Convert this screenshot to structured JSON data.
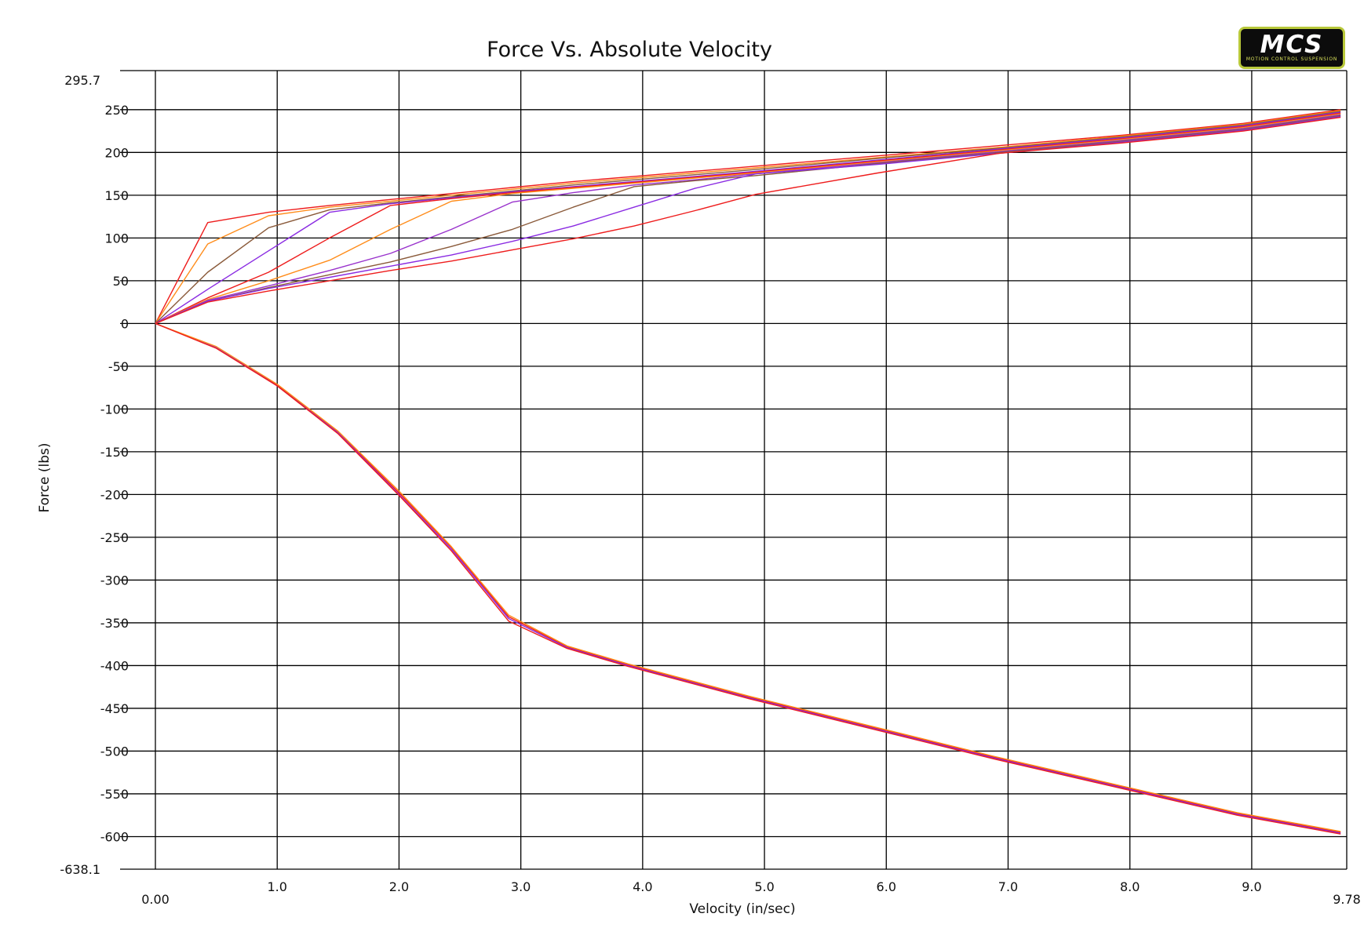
{
  "logo": {
    "main": "MCS",
    "sub": "MOTION CONTROL SUSPENSION"
  },
  "chart_data": {
    "type": "line",
    "title": "Force Vs. Absolute Velocity",
    "xlabel": "Velocity (in/sec)",
    "ylabel": "Force (lbs)",
    "xlim": [
      0,
      9.78
    ],
    "ylim": [
      -638.1,
      295.7
    ],
    "xticks": [
      0,
      1,
      2,
      3,
      4,
      5,
      6,
      7,
      8,
      9,
      9.78
    ],
    "xtick_labels": [
      "0.00",
      "1.0",
      "2.0",
      "3.0",
      "4.0",
      "5.0",
      "6.0",
      "7.0",
      "8.0",
      "9.0",
      "9.78"
    ],
    "yticks": [
      295.7,
      250,
      200,
      150,
      100,
      50,
      0,
      -50,
      -100,
      -150,
      -200,
      -250,
      -300,
      -350,
      -400,
      -450,
      -500,
      -550,
      -600,
      -638.1
    ],
    "ytick_labels": [
      "295.7",
      "250",
      "200",
      "150",
      "100",
      "50",
      "0",
      "-50",
      "-100",
      "-150",
      "-200",
      "-250",
      "-300",
      "-350",
      "-400",
      "-450",
      "-500",
      "-550",
      "-600",
      "-638.1"
    ],
    "grid": true,
    "legend": "none",
    "series": [
      {
        "color": "#ee1c1c",
        "x": [
          0,
          0.43,
          0.93,
          1.43,
          1.93,
          2.43,
          2.93,
          3.43,
          3.93,
          4.43,
          4.93,
          5.93,
          6.93,
          7.93,
          8.93,
          9.73
        ],
        "y": [
          0,
          118,
          130,
          138,
          145,
          152,
          159,
          166,
          172,
          178,
          184,
          196,
          208,
          220,
          234,
          250
        ]
      },
      {
        "color": "#ff8c1a",
        "x": [
          0,
          0.43,
          0.93,
          1.43,
          1.93,
          2.43,
          2.93,
          3.43,
          3.93,
          4.43,
          4.93,
          5.93,
          6.93,
          7.93,
          8.93,
          9.73
        ],
        "y": [
          0,
          93,
          126,
          136,
          143,
          150,
          157,
          164,
          170,
          176,
          182,
          194,
          206,
          219,
          233,
          249
        ]
      },
      {
        "color": "#8a5a3a",
        "x": [
          0,
          0.43,
          0.93,
          1.43,
          1.93,
          2.43,
          2.93,
          3.43,
          3.93,
          4.43,
          4.93,
          5.93,
          6.93,
          7.93,
          8.93,
          9.73
        ],
        "y": [
          0,
          60,
          112,
          133,
          141,
          148,
          155,
          162,
          168,
          174,
          180,
          193,
          205,
          218,
          232,
          248
        ]
      },
      {
        "color": "#8a2be2",
        "x": [
          0,
          0.43,
          0.93,
          1.43,
          1.93,
          2.43,
          2.93,
          3.43,
          3.93,
          4.43,
          4.93,
          5.93,
          6.93,
          7.93,
          8.93,
          9.73
        ],
        "y": [
          0,
          40,
          85,
          130,
          140,
          147,
          154,
          160,
          166,
          172,
          178,
          191,
          204,
          217,
          231,
          247
        ]
      },
      {
        "color": "#ee1c1c",
        "x": [
          0,
          0.43,
          0.93,
          1.43,
          1.93,
          2.43,
          2.93,
          3.43,
          3.93,
          4.43,
          4.93,
          5.93,
          6.93,
          7.93,
          8.93,
          9.73
        ],
        "y": [
          0,
          30,
          60,
          100,
          138,
          146,
          153,
          159,
          165,
          171,
          177,
          190,
          203,
          216,
          230,
          246
        ]
      },
      {
        "color": "#ff8c1a",
        "x": [
          0,
          0.43,
          0.93,
          1.43,
          1.93,
          2.43,
          2.93,
          3.43,
          3.93,
          4.43,
          4.93,
          5.93,
          6.93,
          7.93,
          8.93,
          9.73
        ],
        "y": [
          0,
          28,
          50,
          74,
          110,
          143,
          152,
          158,
          164,
          170,
          176,
          189,
          202,
          215,
          229,
          245
        ]
      },
      {
        "color": "#9932cc",
        "x": [
          0,
          0.43,
          0.93,
          1.43,
          1.93,
          2.43,
          2.93,
          3.43,
          3.93,
          4.43,
          4.93,
          5.93,
          6.93,
          7.93,
          8.93,
          9.73
        ],
        "y": [
          0,
          27,
          44,
          62,
          82,
          110,
          142,
          153,
          162,
          168,
          175,
          188,
          201,
          214,
          228,
          244
        ]
      },
      {
        "color": "#8a5a3a",
        "x": [
          0,
          0.43,
          0.93,
          1.43,
          1.93,
          2.43,
          2.93,
          3.43,
          3.93,
          4.43,
          4.93,
          5.93,
          6.93,
          7.93,
          8.93,
          9.73
        ],
        "y": [
          0,
          26,
          42,
          57,
          72,
          90,
          110,
          136,
          160,
          167,
          173,
          187,
          200,
          213,
          227,
          243
        ]
      },
      {
        "color": "#8a2be2",
        "x": [
          0,
          0.43,
          0.93,
          1.43,
          1.93,
          2.43,
          2.93,
          3.43,
          3.93,
          4.43,
          4.93,
          5.93,
          6.93,
          7.93,
          8.93,
          9.73
        ],
        "y": [
          0,
          26,
          41,
          54,
          67,
          80,
          96,
          114,
          136,
          158,
          175,
          186,
          199,
          212,
          226,
          242
        ]
      },
      {
        "color": "#ee1c1c",
        "x": [
          0,
          0.43,
          0.93,
          1.43,
          1.93,
          2.43,
          2.93,
          3.43,
          3.93,
          4.43,
          4.93,
          5.93,
          6.93,
          7.93,
          8.93,
          9.73
        ],
        "y": [
          0,
          25,
          38,
          50,
          62,
          73,
          86,
          99,
          114,
          132,
          151,
          176,
          199,
          211,
          225,
          241
        ]
      },
      {
        "color": "#ee1c1c",
        "x": [
          0,
          0.5,
          1.0,
          1.5,
          2.0,
          2.43,
          2.9,
          3.38,
          3.88,
          4.88,
          5.88,
          6.88,
          7.88,
          8.88,
          9.73
        ],
        "y": [
          0,
          -28,
          -72,
          -127,
          -198,
          -262,
          -343,
          -378,
          -399,
          -437,
          -472,
          -507,
          -540,
          -573,
          -595
        ]
      },
      {
        "color": "#8a2be2",
        "x": [
          0,
          0.5,
          1.0,
          1.5,
          2.0,
          2.43,
          2.9,
          3.38,
          3.88,
          4.88,
          5.88,
          6.88,
          7.88,
          8.88,
          9.73
        ],
        "y": [
          0,
          -28,
          -73,
          -128,
          -200,
          -264,
          -345,
          -379,
          -400,
          -438,
          -473,
          -508,
          -541,
          -574,
          -596
        ]
      },
      {
        "color": "#ff8c1a",
        "x": [
          0,
          0.5,
          1.0,
          1.5,
          2.0,
          2.43,
          2.9,
          3.38,
          3.88,
          4.88,
          5.88,
          6.88,
          7.88,
          8.88,
          9.73
        ],
        "y": [
          0,
          -27,
          -71,
          -126,
          -196,
          -261,
          -341,
          -377,
          -398,
          -436,
          -471,
          -506,
          -539,
          -572,
          -594
        ]
      },
      {
        "color": "#ee1c1c",
        "x": [
          0,
          0.5,
          1.0,
          1.5,
          2.0,
          2.43,
          2.9,
          3.38,
          3.88,
          4.88,
          5.88,
          6.88,
          7.88,
          8.88,
          9.73
        ],
        "y": [
          0,
          -29,
          -73,
          -129,
          -201,
          -266,
          -348,
          -380,
          -401,
          -439,
          -474,
          -509,
          -542,
          -575,
          -597
        ]
      }
    ]
  }
}
